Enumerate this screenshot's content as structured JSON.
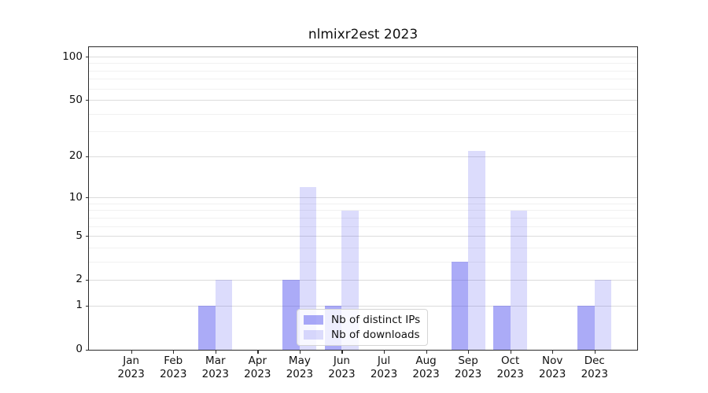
{
  "chart_data": {
    "type": "bar",
    "title": "nlmixr2est 2023",
    "year_label": "2023",
    "categories": [
      "Jan",
      "Feb",
      "Mar",
      "Apr",
      "May",
      "Jun",
      "Jul",
      "Aug",
      "Sep",
      "Oct",
      "Nov",
      "Dec"
    ],
    "series": [
      {
        "name": "Nb of distinct IPs",
        "color": "rgba(68,68,238,0.45)",
        "values": [
          0,
          0,
          1,
          0,
          2,
          1,
          0,
          0,
          3,
          1,
          0,
          1
        ]
      },
      {
        "name": "Nb of downloads",
        "color": "rgba(68,68,238,0.19)",
        "values": [
          0,
          0,
          2,
          0,
          12,
          8,
          0,
          0,
          22,
          8,
          0,
          2
        ]
      }
    ],
    "xlabel": "",
    "ylabel": "",
    "y_axis": {
      "scale": "log1p",
      "tick_values": [
        0,
        1,
        2,
        5,
        10,
        20,
        50,
        100
      ],
      "tick_labels": [
        "0",
        "1",
        "2",
        "5",
        "10",
        "20",
        "50",
        "100"
      ],
      "minor_gridline_values": [
        3,
        4,
        6,
        7,
        8,
        9,
        30,
        40,
        60,
        70,
        80,
        90
      ],
      "range_top_value": 117
    },
    "grid": true,
    "legend_position": "lower-center",
    "colors": {
      "bar_distinct_ips": "rgba(68,68,238,0.45)",
      "bar_downloads": "rgba(68,68,238,0.19)",
      "major_grid": "#dcdcdc",
      "minor_grid": "#f1f1f1",
      "spine": "#2b2b2b",
      "text": "#111111"
    }
  }
}
